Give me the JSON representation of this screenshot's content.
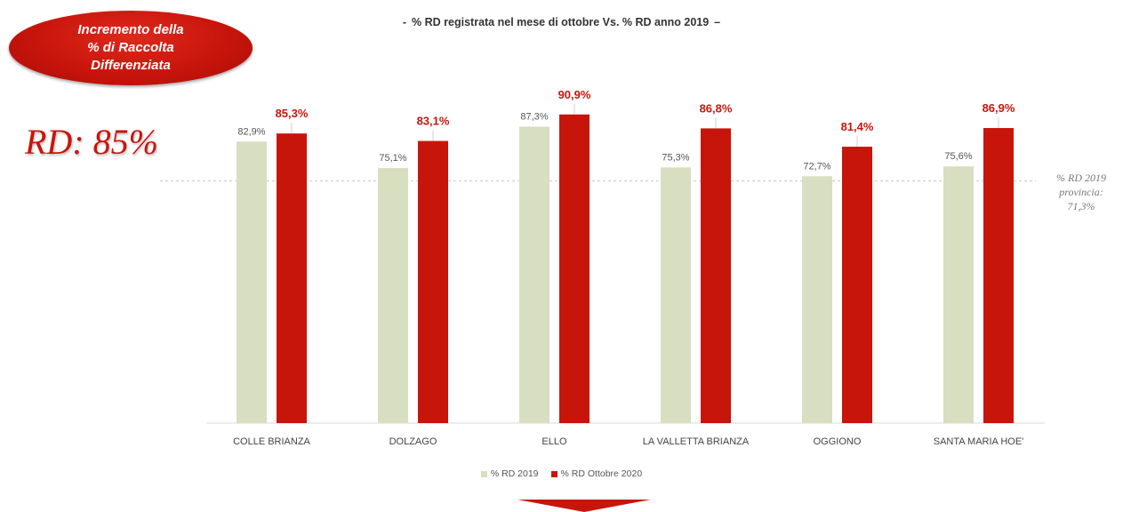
{
  "badge": {
    "text": "Incremento della\n% di Raccolta\nDifferenziata"
  },
  "rd_total": "RD: 85%",
  "chart_data": {
    "type": "bar",
    "title": "% RD registrata nel mese di ottobre Vs. % RD anno 2019",
    "title_prefix": "-",
    "title_suffix": "–",
    "categories": [
      "COLLE BRIANZA",
      "DOLZAGO",
      "ELLO",
      "LA VALLETTA BRIANZA",
      "OGGIONO",
      "SANTA MARIA HOE'"
    ],
    "series": [
      {
        "name": "% RD 2019",
        "color": "#d8dfc0",
        "values": [
          82.9,
          75.1,
          87.3,
          75.3,
          72.7,
          75.6
        ],
        "labels": [
          "82,9%",
          "75,1%",
          "87,3%",
          "75,3%",
          "72,7%",
          "75,6%"
        ]
      },
      {
        "name": "% RD Ottobre 2020",
        "color": "#c8150c",
        "values": [
          85.3,
          83.1,
          90.9,
          86.8,
          81.4,
          86.9
        ],
        "labels": [
          "85,3%",
          "83,1%",
          "90,9%",
          "86,8%",
          "81,4%",
          "86,9%"
        ]
      }
    ],
    "ylim": [
      0,
      100
    ],
    "reference_line": {
      "value": 71.3,
      "label": "% RD 2019\nprovincia:\n71,3%"
    },
    "grid": false,
    "legend": "bottom"
  }
}
